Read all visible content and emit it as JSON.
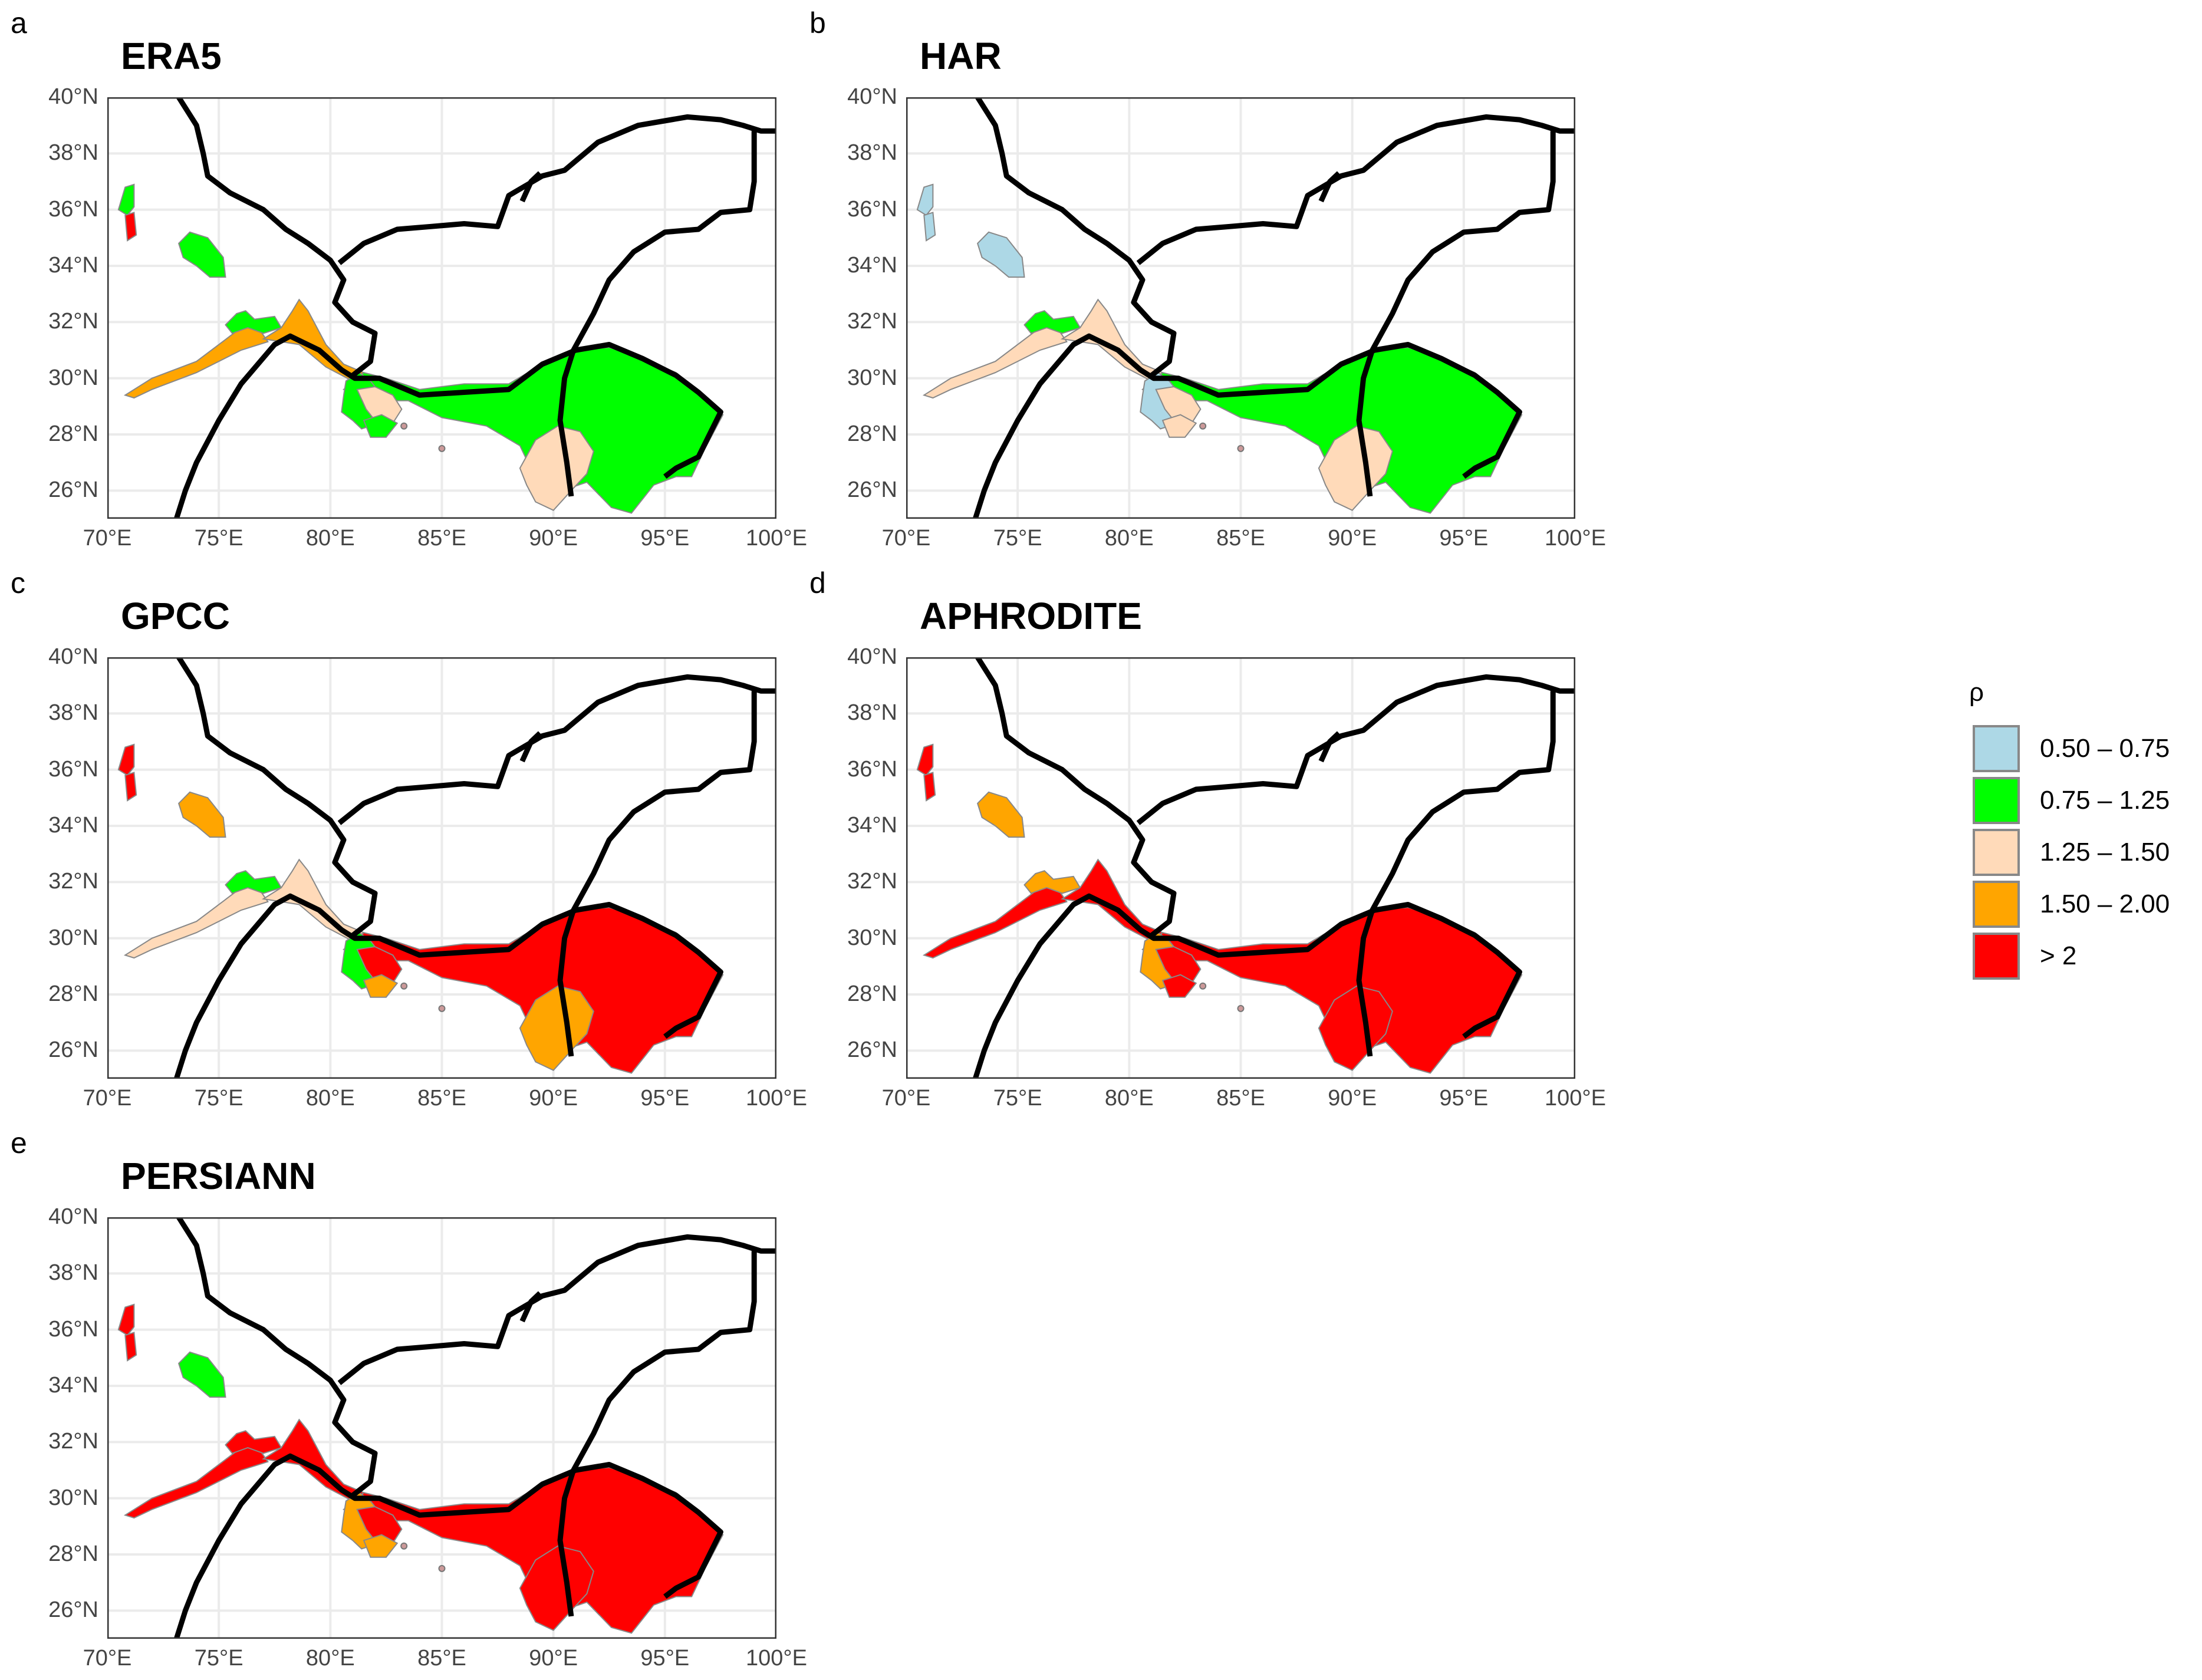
{
  "panels": [
    {
      "tag": "a",
      "title": "ERA5",
      "fills": {
        "c1": "orange",
        "c2": "green",
        "c3": "orange",
        "c4": "green",
        "c5": "green",
        "c6": "peach",
        "c7": "green",
        "c8": "green",
        "c9": "red",
        "c10": "peach",
        "c11": "green"
      }
    },
    {
      "tag": "b",
      "title": "HAR",
      "fills": {
        "c1": "peach",
        "c2": "green",
        "c3": "peach",
        "c4": "green",
        "c5": "blue",
        "c6": "peach",
        "c7": "peach",
        "c8": "blue",
        "c9": "blue",
        "c10": "peach",
        "c11": "blue"
      }
    },
    {
      "tag": "c",
      "title": "GPCC",
      "fills": {
        "c1": "peach",
        "c2": "green",
        "c3": "peach",
        "c4": "red",
        "c5": "green",
        "c6": "red",
        "c7": "orange",
        "c8": "red",
        "c9": "red",
        "c10": "orange",
        "c11": "orange"
      }
    },
    {
      "tag": "d",
      "title": "APHRODITE",
      "fills": {
        "c1": "red",
        "c2": "orange",
        "c3": "red",
        "c4": "red",
        "c5": "orange",
        "c6": "red",
        "c7": "red",
        "c8": "red",
        "c9": "red",
        "c10": "red",
        "c11": "orange"
      }
    },
    {
      "tag": "e",
      "title": "PERSIANN",
      "fills": {
        "c1": "red",
        "c2": "red",
        "c3": "red",
        "c4": "red",
        "c5": "orange",
        "c6": "red",
        "c7": "orange",
        "c8": "red",
        "c9": "red",
        "c10": "red",
        "c11": "green"
      }
    }
  ],
  "axes": {
    "lat_labels": [
      "40°N",
      "38°N",
      "36°N",
      "34°N",
      "32°N",
      "30°N",
      "28°N",
      "26°N"
    ],
    "lon_labels": [
      "70°E",
      "75°E",
      "80°E",
      "85°E",
      "90°E",
      "95°E",
      "100°E"
    ],
    "lat_values": [
      40,
      38,
      36,
      34,
      32,
      30,
      28,
      26
    ],
    "lon_values": [
      70,
      75,
      80,
      85,
      90,
      95,
      100
    ],
    "lat_range": [
      25,
      40
    ],
    "lon_range": [
      70,
      100
    ]
  },
  "legend": {
    "title": "ρ",
    "items": [
      {
        "label": "0.50 – 0.75",
        "key": "blue",
        "color": "#add8e6"
      },
      {
        "label": "0.75 – 1.25",
        "key": "green",
        "color": "#00ff00"
      },
      {
        "label": "1.25 – 1.50",
        "key": "peach",
        "color": "#ffdab9"
      },
      {
        "label": "1.50 – 2.00",
        "key": "orange",
        "color": "#ffa500"
      },
      {
        "label": "> 2",
        "key": "red",
        "color": "#ff0000"
      }
    ]
  }
}
